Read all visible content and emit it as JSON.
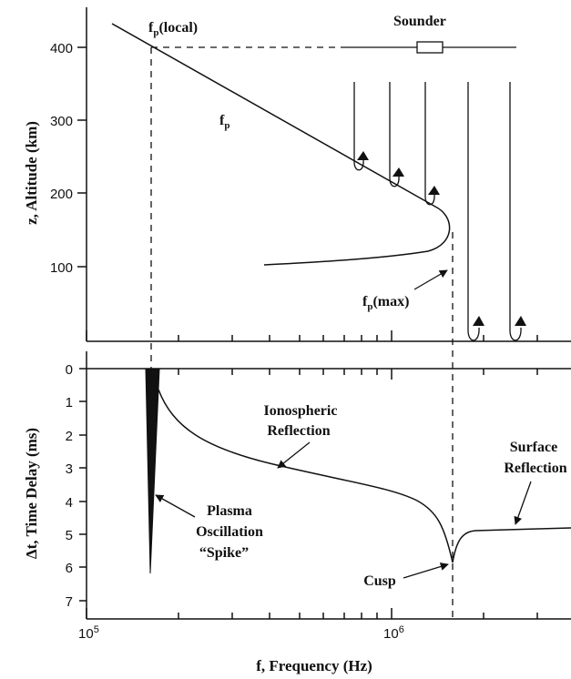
{
  "top_panel": {
    "y_axis_title": "z, Altitude (km)",
    "y_ticks": [
      "100",
      "200",
      "300",
      "400"
    ],
    "label_fp_local_main": "f",
    "label_fp_local_sub": "p",
    "label_fp_local_rest": "(local)",
    "label_fp_main": "f",
    "label_fp_sub": "p",
    "label_fp_max_main": "f",
    "label_fp_max_sub": "p",
    "label_fp_max_rest": "(max)",
    "label_sounder": "Sounder"
  },
  "bottom_panel": {
    "y_axis_title": "Δt,   Time Delay (ms)",
    "y_ticks": [
      "0",
      "1",
      "2",
      "3",
      "4",
      "5",
      "6",
      "7"
    ],
    "x_axis_title": "f, Frequency (Hz)",
    "x_tick_major_1": "10",
    "x_tick_major_1_exp": "5",
    "x_tick_major_2": "10",
    "x_tick_major_2_exp": "6",
    "label_ionospheric_1": "Ionospheric",
    "label_ionospheric_2": "Reflection",
    "label_surface_1": "Surface",
    "label_surface_2": "Reflection",
    "label_plasma_1": "Plasma",
    "label_plasma_2": "Oscillation",
    "label_plasma_3": "“Spike”",
    "label_cusp": "Cusp"
  }
}
